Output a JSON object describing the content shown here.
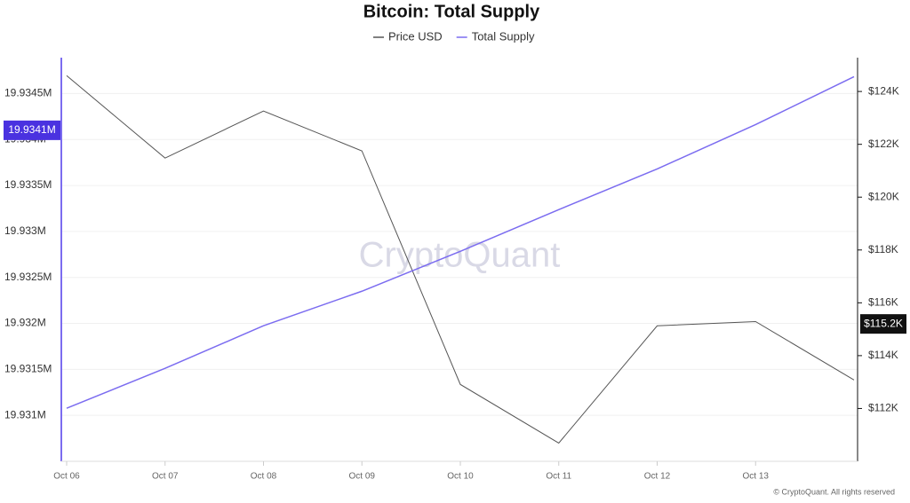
{
  "chart_data": {
    "type": "line",
    "title": "Bitcoin: Total Supply",
    "categories": [
      "Oct 06",
      "Oct 07",
      "Oct 08",
      "Oct 09",
      "Oct 10",
      "Oct 11",
      "Oct 12",
      "Oct 13",
      null
    ],
    "series": [
      {
        "name": "Price USD",
        "color": "#555555",
        "axis": "y2",
        "values": [
          124600,
          121480,
          123260,
          121750,
          112910,
          110690,
          115130,
          115290,
          113080
        ]
      },
      {
        "name": "Total Supply",
        "color": "#7b6cf0",
        "axis": "y",
        "values": [
          19931077,
          19931511,
          19931974,
          19932350,
          19932784,
          19933237,
          19933680,
          19934162,
          19934683
        ]
      }
    ],
    "ylim": [
      19930500,
      19934890
    ],
    "yticks": [
      {
        "value": 19931000,
        "label": "19.931M"
      },
      {
        "value": 19931500,
        "label": "19.9315M"
      },
      {
        "value": 19932000,
        "label": "19.932M"
      },
      {
        "value": 19932500,
        "label": "19.9325M"
      },
      {
        "value": 19933000,
        "label": "19.933M"
      },
      {
        "value": 19933500,
        "label": "19.9335M"
      },
      {
        "value": 19934000,
        "label": "19.934M"
      },
      {
        "value": 19934500,
        "label": "19.9345M"
      }
    ],
    "y2lim": [
      110000,
      125280
    ],
    "y2ticks": [
      {
        "value": 112000,
        "label": "$112K"
      },
      {
        "value": 114000,
        "label": "$114K"
      },
      {
        "value": 116000,
        "label": "$116K"
      },
      {
        "value": 118000,
        "label": "$118K"
      },
      {
        "value": 120000,
        "label": "$120K"
      },
      {
        "value": 122000,
        "label": "$122K"
      },
      {
        "value": 124000,
        "label": "$124K"
      }
    ],
    "grid": true,
    "legend": "top",
    "markers": [
      {
        "axis": "y",
        "value": 19934100,
        "label": "19.9341M",
        "color": "#4a32e0"
      },
      {
        "axis": "y2",
        "value": 115200,
        "label": "$115.2K",
        "color": "#111111"
      }
    ],
    "watermark": "CryptoQuant",
    "source": "© CryptoQuant. All rights reserved"
  }
}
